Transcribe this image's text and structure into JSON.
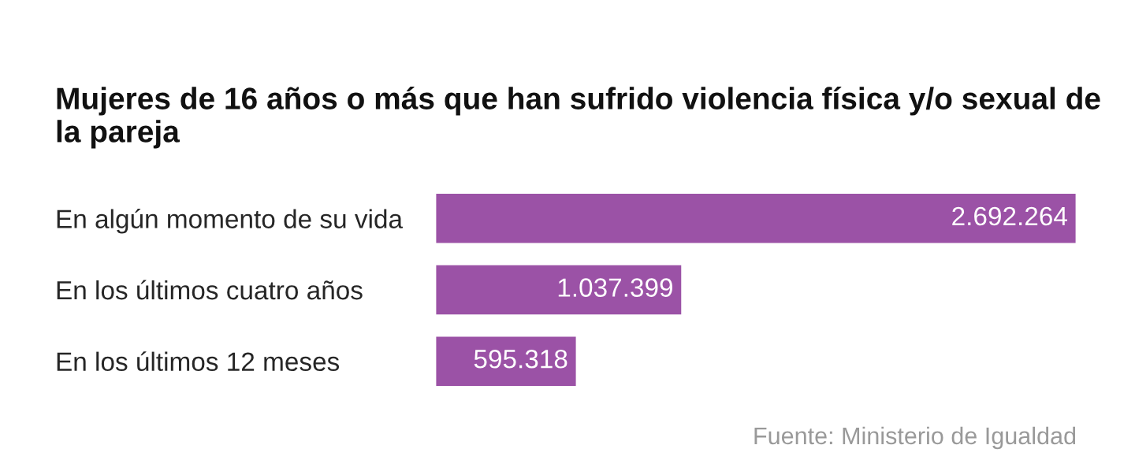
{
  "chart_data": {
    "type": "bar",
    "orientation": "horizontal",
    "title": "Mujeres de 16 años o más que han sufrido violencia física y/o sexual de la pareja",
    "categories": [
      "En algún momento de su vida",
      "En los últimos cuatro años",
      "En los últimos 12 meses"
    ],
    "values": [
      2692264,
      1037399,
      595318
    ],
    "value_labels": [
      "2.692.264",
      "1.037.399",
      "595.318"
    ],
    "color": "#9b52a6",
    "annotations": [
      "Fuente: Ministerio de Igualdad"
    ]
  }
}
